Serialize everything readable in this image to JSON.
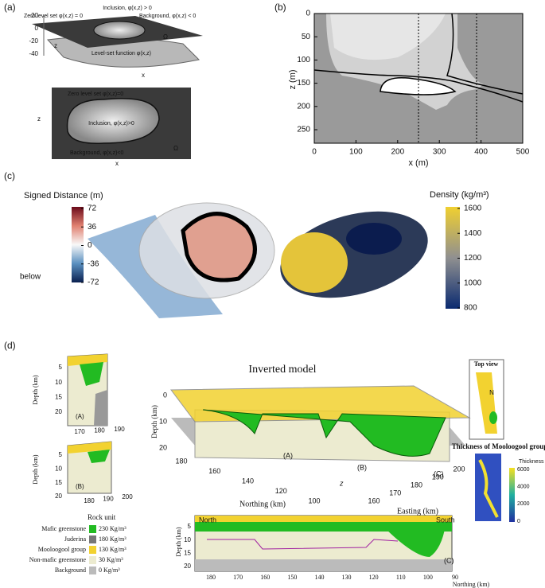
{
  "panel_a": {
    "label": "(a)",
    "surface": {
      "inclusion": "Inclusion, φ(x,z) > 0",
      "zero_level": "Zero level set φ(x,z) = 0",
      "background": "Background, φ(x,z) < 0",
      "omega": "Ω",
      "function": "Level-set function φ(x,z)",
      "zticks": [
        20,
        0,
        -20,
        -40
      ],
      "z_label": "z",
      "x_label": "x"
    },
    "section": {
      "zero_level": "Zero level set φ(x,z)=0",
      "inclusion": "Inclusion, φ(x,z)>0",
      "background": "Background, φ(x,z)<0",
      "omega": "Ω",
      "z_label": "z",
      "x_label": "x"
    }
  },
  "panel_b": {
    "label": "(b)",
    "x_label": "x (m)",
    "y_label": "z (m)",
    "xticks": [
      0,
      100,
      200,
      300,
      400,
      500
    ],
    "yticks": [
      0,
      50,
      100,
      150,
      200,
      250
    ]
  },
  "panel_c": {
    "label": "(c)",
    "distance_bar": {
      "title": "Signed Distance (m)",
      "ticks": [
        72,
        36,
        0,
        -36,
        -72
      ],
      "below": "below"
    },
    "density_bar": {
      "title": "Density (kg/m³)",
      "ticks": [
        1600,
        1400,
        1200,
        1000,
        800
      ]
    }
  },
  "panel_d": {
    "label": "(d)",
    "title": "Inverted model",
    "section_a": {
      "y_label": "Depth (km)",
      "yticks": [
        5,
        10,
        15,
        20
      ],
      "xticks": [
        170,
        180,
        190
      ],
      "tag": "(A)"
    },
    "section_b": {
      "y_label": "Depth (km)",
      "yticks": [
        5,
        10,
        15,
        20
      ],
      "xticks": [
        180,
        190,
        200
      ],
      "tag": "(B)"
    },
    "model": {
      "y_label": "Depth (km)",
      "yticks": [
        0,
        10,
        20
      ],
      "northing_ticks": [
        180,
        160,
        140,
        120,
        100
      ],
      "northing_label": "Northing (km)",
      "easting_ticks": [
        160,
        170,
        180,
        190,
        200
      ],
      "easting_label": "Easting (km)",
      "tags": [
        "(A)",
        "(B)",
        "(C)"
      ],
      "z": "z"
    },
    "top_view": {
      "title": "Top view",
      "north": "N"
    },
    "thickness": {
      "title": "Thickness of Mooloogool group",
      "unit": "Thickness in meters",
      "ticks": [
        6000,
        4000,
        2000,
        0
      ]
    },
    "legend": {
      "title": "Rock unit",
      "items": [
        {
          "name": "Mafic greenstone",
          "density": "230 Kg/m³",
          "color": "#22bb22"
        },
        {
          "name": "Juderina",
          "density": "180 Kg/m³",
          "color": "#777777"
        },
        {
          "name": "Mooloogool group",
          "density": "130 Kg/m³",
          "color": "#f2d230"
        },
        {
          "name": "Non-mafic greenstone",
          "density": "30 Kg/m³",
          "color": "#ecebd0"
        },
        {
          "name": "Background",
          "density": "0 Kg/m³",
          "color": "#bbbbbb"
        }
      ]
    },
    "section_c": {
      "north": "North",
      "south": "South",
      "y_label": "Depth (km)",
      "yticks": [
        5,
        10,
        15,
        20
      ],
      "xticks": [
        180,
        170,
        160,
        150,
        140,
        130,
        120,
        110,
        100,
        90
      ],
      "x_label": "Northing (km)",
      "tag": "(C)"
    }
  }
}
